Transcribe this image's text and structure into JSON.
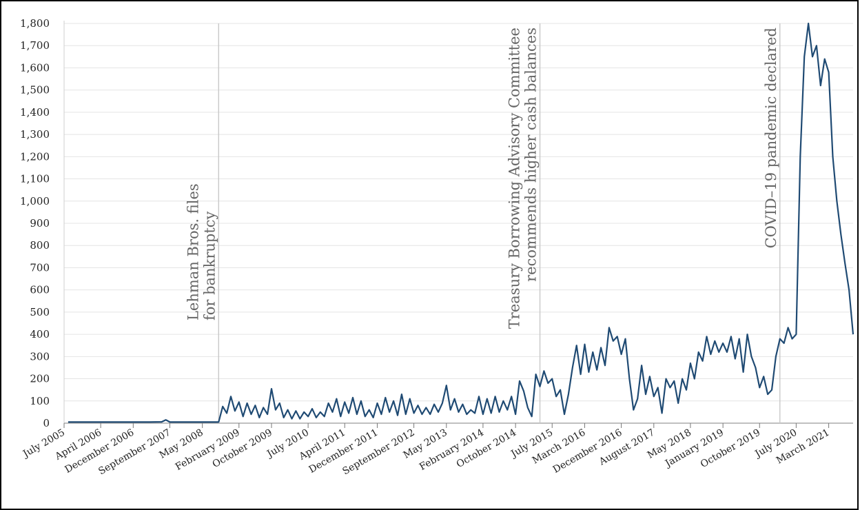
{
  "chart_data": {
    "type": "line",
    "title": "",
    "xlabel": "",
    "ylabel": "",
    "ylim": [
      0,
      1800
    ],
    "xlim": [
      "2005-07",
      "2021-09"
    ],
    "grid": "horizontal",
    "yticks": [
      "0",
      "100",
      "200",
      "300",
      "400",
      "500",
      "600",
      "700",
      "800",
      "900",
      "1,000",
      "1,100",
      "1,200",
      "1,300",
      "1,400",
      "1,500",
      "1,600",
      "1,700",
      "1,800"
    ],
    "xticks": [
      {
        "label": "July 2005",
        "date": "2005-07"
      },
      {
        "label": "April 2006",
        "date": "2006-04"
      },
      {
        "label": "December 2006",
        "date": "2006-12"
      },
      {
        "label": "September 2007",
        "date": "2007-09"
      },
      {
        "label": "May 2008",
        "date": "2008-05"
      },
      {
        "label": "February 2009",
        "date": "2009-02"
      },
      {
        "label": "October 2009",
        "date": "2009-10"
      },
      {
        "label": "July 2010",
        "date": "2010-07"
      },
      {
        "label": "April 2011",
        "date": "2011-04"
      },
      {
        "label": "December 2011",
        "date": "2011-12"
      },
      {
        "label": "September 2012",
        "date": "2012-09"
      },
      {
        "label": "May 2013",
        "date": "2013-05"
      },
      {
        "label": "February 2014",
        "date": "2014-02"
      },
      {
        "label": "October 2014",
        "date": "2014-10"
      },
      {
        "label": "July 2015",
        "date": "2015-07"
      },
      {
        "label": "March 2016",
        "date": "2016-03"
      },
      {
        "label": "December 2016",
        "date": "2016-12"
      },
      {
        "label": "August 2017",
        "date": "2017-08"
      },
      {
        "label": "May 2018",
        "date": "2018-05"
      },
      {
        "label": "January 2019",
        "date": "2019-01"
      },
      {
        "label": "October 2019",
        "date": "2019-10"
      },
      {
        "label": "July 2020",
        "date": "2020-07"
      },
      {
        "label": "March 2021",
        "date": "2021-03"
      }
    ],
    "annotations": [
      {
        "date": "2008-09",
        "lines": [
          "Lehman Bros. files",
          "for bankruptcy"
        ]
      },
      {
        "date": "2015-04",
        "lines": [
          "Treasury Borrowing Advisory Committee",
          "recommends higher cash balances"
        ]
      },
      {
        "date": "2020-03",
        "lines": [
          "COVID–19 pandemic declared"
        ]
      }
    ],
    "series": [
      {
        "color": "#1f4a73",
        "points": [
          [
            "2005-08",
            5
          ],
          [
            "2005-12",
            5
          ],
          [
            "2006-04",
            5
          ],
          [
            "2006-08",
            5
          ],
          [
            "2006-12",
            5
          ],
          [
            "2007-04",
            5
          ],
          [
            "2007-07",
            6
          ],
          [
            "2007-08",
            15
          ],
          [
            "2007-09",
            5
          ],
          [
            "2008-01",
            5
          ],
          [
            "2008-05",
            5
          ],
          [
            "2008-09",
            5
          ],
          [
            "2008-10",
            75
          ],
          [
            "2008-11",
            45
          ],
          [
            "2008-12",
            120
          ],
          [
            "2009-01",
            55
          ],
          [
            "2009-02",
            95
          ],
          [
            "2009-03",
            30
          ],
          [
            "2009-04",
            90
          ],
          [
            "2009-05",
            40
          ],
          [
            "2009-06",
            80
          ],
          [
            "2009-07",
            25
          ],
          [
            "2009-08",
            70
          ],
          [
            "2009-09",
            40
          ],
          [
            "2009-10",
            155
          ],
          [
            "2009-11",
            60
          ],
          [
            "2009-12",
            90
          ],
          [
            "2010-01",
            25
          ],
          [
            "2010-02",
            60
          ],
          [
            "2010-03",
            20
          ],
          [
            "2010-04",
            55
          ],
          [
            "2010-05",
            20
          ],
          [
            "2010-06",
            50
          ],
          [
            "2010-07",
            30
          ],
          [
            "2010-08",
            65
          ],
          [
            "2010-09",
            25
          ],
          [
            "2010-10",
            50
          ],
          [
            "2010-11",
            30
          ],
          [
            "2010-12",
            90
          ],
          [
            "2011-01",
            50
          ],
          [
            "2011-02",
            110
          ],
          [
            "2011-03",
            30
          ],
          [
            "2011-04",
            95
          ],
          [
            "2011-05",
            45
          ],
          [
            "2011-06",
            115
          ],
          [
            "2011-07",
            40
          ],
          [
            "2011-08",
            100
          ],
          [
            "2011-09",
            30
          ],
          [
            "2011-10",
            60
          ],
          [
            "2011-11",
            25
          ],
          [
            "2011-12",
            90
          ],
          [
            "2012-01",
            40
          ],
          [
            "2012-02",
            115
          ],
          [
            "2012-03",
            50
          ],
          [
            "2012-04",
            100
          ],
          [
            "2012-05",
            35
          ],
          [
            "2012-06",
            130
          ],
          [
            "2012-07",
            40
          ],
          [
            "2012-08",
            110
          ],
          [
            "2012-09",
            45
          ],
          [
            "2012-10",
            80
          ],
          [
            "2012-11",
            40
          ],
          [
            "2012-12",
            70
          ],
          [
            "2013-01",
            40
          ],
          [
            "2013-02",
            85
          ],
          [
            "2013-03",
            50
          ],
          [
            "2013-04",
            90
          ],
          [
            "2013-05",
            170
          ],
          [
            "2013-06",
            60
          ],
          [
            "2013-07",
            110
          ],
          [
            "2013-08",
            50
          ],
          [
            "2013-09",
            85
          ],
          [
            "2013-10",
            40
          ],
          [
            "2013-11",
            60
          ],
          [
            "2013-12",
            45
          ],
          [
            "2014-01",
            120
          ],
          [
            "2014-02",
            40
          ],
          [
            "2014-03",
            110
          ],
          [
            "2014-04",
            45
          ],
          [
            "2014-05",
            120
          ],
          [
            "2014-06",
            50
          ],
          [
            "2014-07",
            100
          ],
          [
            "2014-08",
            60
          ],
          [
            "2014-09",
            120
          ],
          [
            "2014-10",
            40
          ],
          [
            "2014-11",
            190
          ],
          [
            "2014-12",
            145
          ],
          [
            "2015-01",
            70
          ],
          [
            "2015-02",
            30
          ],
          [
            "2015-03",
            220
          ],
          [
            "2015-04",
            165
          ],
          [
            "2015-05",
            235
          ],
          [
            "2015-06",
            180
          ],
          [
            "2015-07",
            200
          ],
          [
            "2015-08",
            120
          ],
          [
            "2015-09",
            150
          ],
          [
            "2015-10",
            40
          ],
          [
            "2015-11",
            130
          ],
          [
            "2015-12",
            250
          ],
          [
            "2016-01",
            350
          ],
          [
            "2016-02",
            220
          ],
          [
            "2016-03",
            355
          ],
          [
            "2016-04",
            230
          ],
          [
            "2016-05",
            320
          ],
          [
            "2016-06",
            240
          ],
          [
            "2016-07",
            340
          ],
          [
            "2016-08",
            260
          ],
          [
            "2016-09",
            430
          ],
          [
            "2016-10",
            370
          ],
          [
            "2016-11",
            390
          ],
          [
            "2016-12",
            310
          ],
          [
            "2017-01",
            380
          ],
          [
            "2017-02",
            200
          ],
          [
            "2017-03",
            60
          ],
          [
            "2017-04",
            110
          ],
          [
            "2017-05",
            260
          ],
          [
            "2017-06",
            130
          ],
          [
            "2017-07",
            210
          ],
          [
            "2017-08",
            120
          ],
          [
            "2017-09",
            160
          ],
          [
            "2017-10",
            45
          ],
          [
            "2017-11",
            200
          ],
          [
            "2017-12",
            160
          ],
          [
            "2018-01",
            190
          ],
          [
            "2018-02",
            90
          ],
          [
            "2018-03",
            200
          ],
          [
            "2018-04",
            150
          ],
          [
            "2018-05",
            270
          ],
          [
            "2018-06",
            200
          ],
          [
            "2018-07",
            320
          ],
          [
            "2018-08",
            280
          ],
          [
            "2018-09",
            390
          ],
          [
            "2018-10",
            310
          ],
          [
            "2018-11",
            370
          ],
          [
            "2018-12",
            320
          ],
          [
            "2019-01",
            360
          ],
          [
            "2019-02",
            320
          ],
          [
            "2019-03",
            390
          ],
          [
            "2019-04",
            290
          ],
          [
            "2019-05",
            380
          ],
          [
            "2019-06",
            230
          ],
          [
            "2019-07",
            400
          ],
          [
            "2019-08",
            300
          ],
          [
            "2019-09",
            250
          ],
          [
            "2019-10",
            160
          ],
          [
            "2019-11",
            210
          ],
          [
            "2019-12",
            130
          ],
          [
            "2020-01",
            150
          ],
          [
            "2020-02",
            300
          ],
          [
            "2020-03",
            380
          ],
          [
            "2020-04",
            360
          ],
          [
            "2020-05",
            430
          ],
          [
            "2020-06",
            380
          ],
          [
            "2020-07",
            400
          ],
          [
            "2020-08",
            1200
          ],
          [
            "2020-09",
            1650
          ],
          [
            "2020-10",
            1800
          ],
          [
            "2020-11",
            1650
          ],
          [
            "2020-12",
            1700
          ],
          [
            "2021-01",
            1520
          ],
          [
            "2021-02",
            1640
          ],
          [
            "2021-03",
            1580
          ],
          [
            "2021-04",
            1200
          ],
          [
            "2021-05",
            1000
          ],
          [
            "2021-06",
            850
          ],
          [
            "2021-07",
            720
          ],
          [
            "2021-08",
            600
          ],
          [
            "2021-09",
            400
          ]
        ]
      }
    ]
  }
}
